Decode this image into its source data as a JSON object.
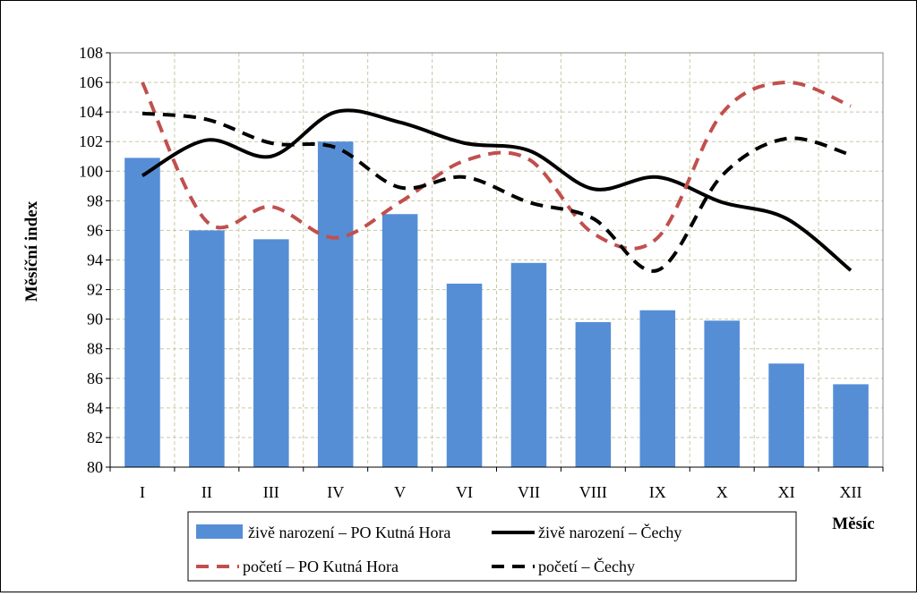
{
  "chart_data": {
    "type": "bar",
    "categories": [
      "I",
      "II",
      "III",
      "IV",
      "V",
      "VI",
      "VII",
      "VIII",
      "IX",
      "X",
      "XI",
      "XII"
    ],
    "xlabel": "Měsíc",
    "ylabel": "Měsíční index",
    "ylim": [
      80,
      108
    ],
    "ytick_step": 2,
    "yticks": [
      "80",
      "82",
      "84",
      "86",
      "88",
      "90",
      "92",
      "94",
      "96",
      "98",
      "100",
      "102",
      "104",
      "106",
      "108"
    ],
    "grid": true,
    "legend_position": "bottom",
    "series": [
      {
        "name": "živě narození –  PO Kutná Hora",
        "type": "bar",
        "color": "#558ED5",
        "values": [
          100.9,
          96.0,
          95.4,
          102.0,
          97.1,
          92.4,
          93.8,
          89.8,
          90.6,
          89.9,
          87.0,
          85.6
        ]
      },
      {
        "name": "živě narození – Čechy",
        "type": "line",
        "style": "solid",
        "color": "#000000",
        "values": [
          99.7,
          102.1,
          101.0,
          104.0,
          103.3,
          101.9,
          101.4,
          98.8,
          99.6,
          97.9,
          96.8,
          93.3
        ]
      },
      {
        "name": "početí – PO Kutná Hora",
        "type": "line",
        "style": "dashed",
        "color": "#C0504D",
        "values": [
          106.0,
          96.6,
          97.6,
          95.5,
          97.9,
          100.7,
          100.8,
          95.8,
          95.5,
          103.9,
          106.0,
          104.4
        ]
      },
      {
        "name": "početí – Čechy",
        "type": "line",
        "style": "dashed",
        "color": "#000000",
        "values": [
          103.9,
          103.5,
          101.9,
          101.6,
          98.9,
          99.6,
          97.9,
          96.8,
          93.3,
          99.7,
          102.2,
          101.1
        ]
      }
    ]
  }
}
